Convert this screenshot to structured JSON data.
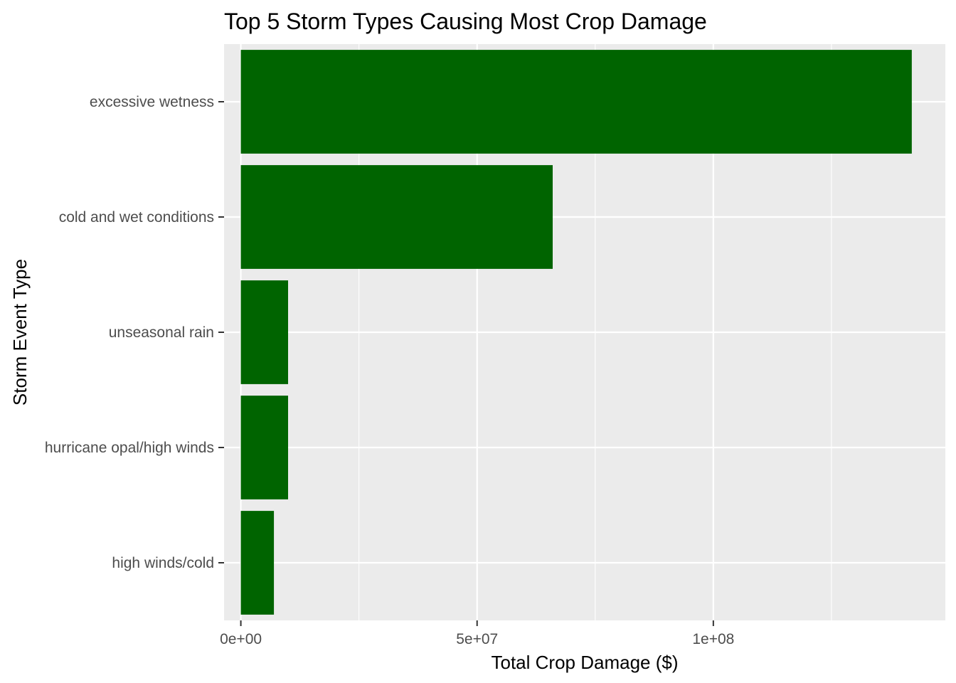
{
  "chart_data": {
    "type": "bar",
    "orientation": "horizontal",
    "title": "Top 5 Storm Types Causing Most Crop Damage",
    "xlabel": "Total Crop Damage ($)",
    "ylabel": "Storm Event Type",
    "categories": [
      "excessive wetness",
      "cold and wet conditions",
      "unseasonal rain",
      "hurricane opal/high winds",
      "high winds/cold"
    ],
    "values": [
      142000000,
      66000000,
      10000000,
      10000000,
      7000000
    ],
    "xlim": [
      -3550000,
      149100000
    ],
    "xticks": [
      {
        "value": 0,
        "label": "0e+00"
      },
      {
        "value": 50000000,
        "label": "5e+07"
      },
      {
        "value": 100000000,
        "label": "1e+08"
      }
    ],
    "x_minor_gridlines": [
      25000000,
      75000000,
      125000000
    ],
    "grid": true,
    "bar_color": "#006400",
    "panel_background": "#ebebeb",
    "gridline_color": "#ffffff"
  }
}
